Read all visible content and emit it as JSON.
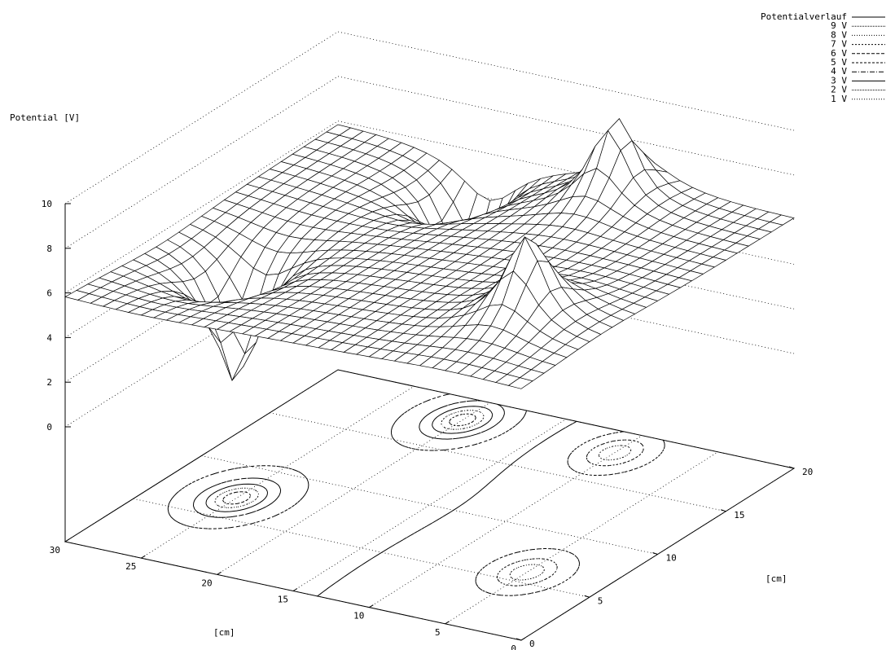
{
  "chart_data": {
    "type": "surface",
    "zlabel": "Potential [V]",
    "xlabel": "[cm]",
    "ylabel": "[cm]",
    "x_ticks": [
      "30",
      "25",
      "20",
      "15",
      "10",
      "5",
      "0"
    ],
    "y_ticks": [
      "0",
      "5",
      "10",
      "15",
      "20"
    ],
    "z_ticks": [
      "0",
      "2",
      "4",
      "6",
      "8",
      "10"
    ],
    "xlim": [
      0,
      30
    ],
    "ylim": [
      0,
      20
    ],
    "zlim": [
      0,
      10
    ],
    "base_potential": 6,
    "charges": [
      {
        "x": 10,
        "y": 18,
        "peak": 10,
        "sign": "positive"
      },
      {
        "x": 20,
        "y": 18,
        "peak": 0,
        "sign": "negative"
      },
      {
        "x": 25,
        "y": 7,
        "peak": 0,
        "sign": "negative"
      },
      {
        "x": 5,
        "y": 6,
        "peak": 10,
        "sign": "positive"
      }
    ],
    "legend": {
      "position": "top-right",
      "entries": [
        "Potentialverlauf",
        "9 V",
        "8 V",
        "7 V",
        "6 V",
        "5 V",
        "4 V",
        "3 V",
        "2 V",
        "1 V"
      ]
    },
    "grid": true,
    "base_contours": true
  }
}
